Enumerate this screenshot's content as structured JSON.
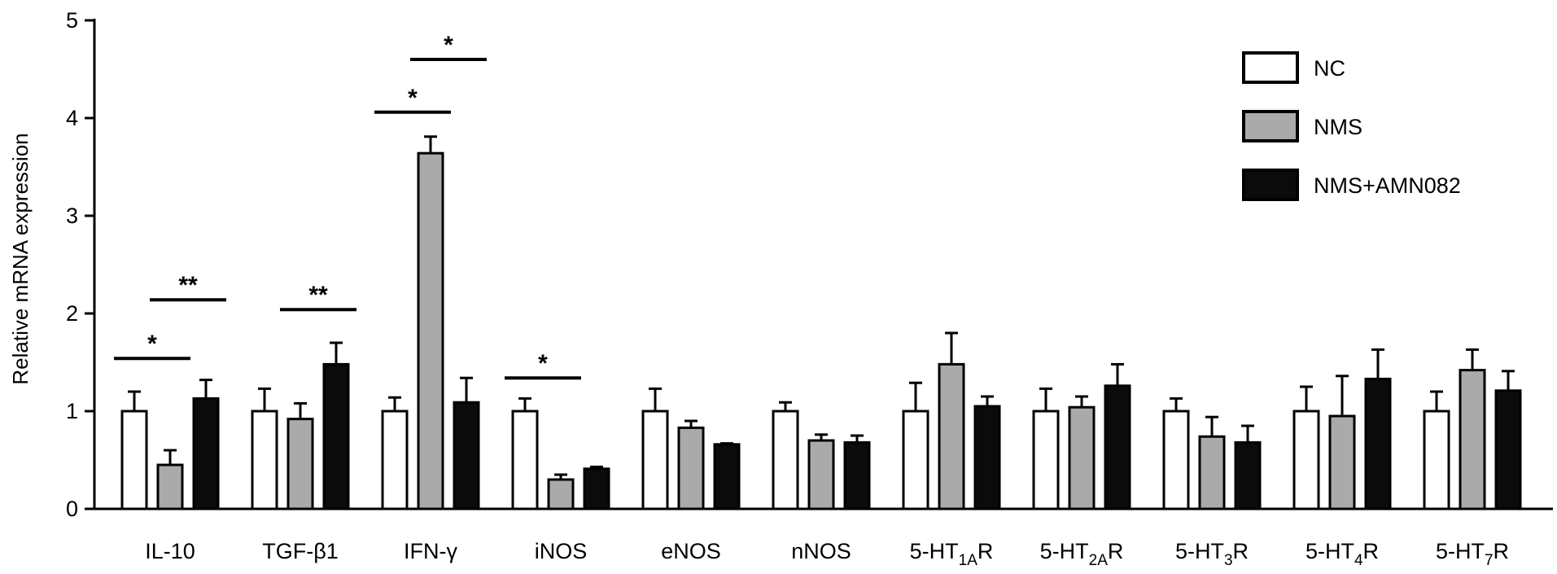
{
  "chart_data": {
    "type": "bar",
    "ylabel": "Relative mRNA expression",
    "ylim": [
      0,
      5
    ],
    "yticks": [
      "0",
      "1",
      "2",
      "3",
      "4",
      "5"
    ],
    "categories": [
      {
        "label": "IL-10"
      },
      {
        "label": "TGF-β1"
      },
      {
        "label": "IFN-γ"
      },
      {
        "label": "iNOS"
      },
      {
        "label": "eNOS"
      },
      {
        "label": "nNOS"
      },
      {
        "label": "5-HT",
        "sub": "1A",
        "suffix": "R"
      },
      {
        "label": "5-HT",
        "sub": "2A",
        "suffix": "R"
      },
      {
        "label": "5-HT",
        "sub": "3",
        "suffix": "R"
      },
      {
        "label": "5-HT",
        "sub": "4",
        "suffix": "R"
      },
      {
        "label": "5-HT",
        "sub": "7",
        "suffix": "R"
      }
    ],
    "series": [
      {
        "name": "NC",
        "color": "#ffffff",
        "values": [
          1.0,
          1.0,
          1.0,
          1.0,
          1.0,
          1.0,
          1.0,
          1.0,
          1.0,
          1.0,
          1.0
        ],
        "errors": [
          0.2,
          0.23,
          0.14,
          0.13,
          0.23,
          0.09,
          0.29,
          0.23,
          0.13,
          0.25,
          0.2
        ]
      },
      {
        "name": "NMS",
        "color": "#aaaaaa",
        "values": [
          0.45,
          0.92,
          3.64,
          0.3,
          0.83,
          0.7,
          1.48,
          1.04,
          0.74,
          0.95,
          1.42
        ],
        "errors": [
          0.15,
          0.16,
          0.17,
          0.05,
          0.07,
          0.06,
          0.32,
          0.11,
          0.2,
          0.41,
          0.21
        ]
      },
      {
        "name": "NMS+AMN082",
        "color": "#0b0b0b",
        "values": [
          1.13,
          1.48,
          1.09,
          0.41,
          0.66,
          0.68,
          1.05,
          1.26,
          0.68,
          1.33,
          1.21
        ],
        "errors": [
          0.19,
          0.22,
          0.25,
          0.02,
          0.01,
          0.07,
          0.1,
          0.22,
          0.17,
          0.3,
          0.2
        ]
      }
    ],
    "significance": [
      {
        "category": 0,
        "from": 0,
        "to": 1,
        "label": "*",
        "y": 1.54
      },
      {
        "category": 0,
        "from": 1,
        "to": 2,
        "label": "**",
        "y": 2.14
      },
      {
        "category": 1,
        "from": 1,
        "to": 2,
        "label": "**",
        "y": 2.04
      },
      {
        "category": 2,
        "from": 0,
        "to": 1,
        "label": "*",
        "y": 4.06
      },
      {
        "category": 2,
        "from": 1,
        "to": 2,
        "label": "*",
        "y": 4.6
      },
      {
        "category": 3,
        "from": 0,
        "to": 1,
        "label": "*",
        "y": 1.34
      }
    ],
    "legend_position": "top-right",
    "grid": false
  }
}
